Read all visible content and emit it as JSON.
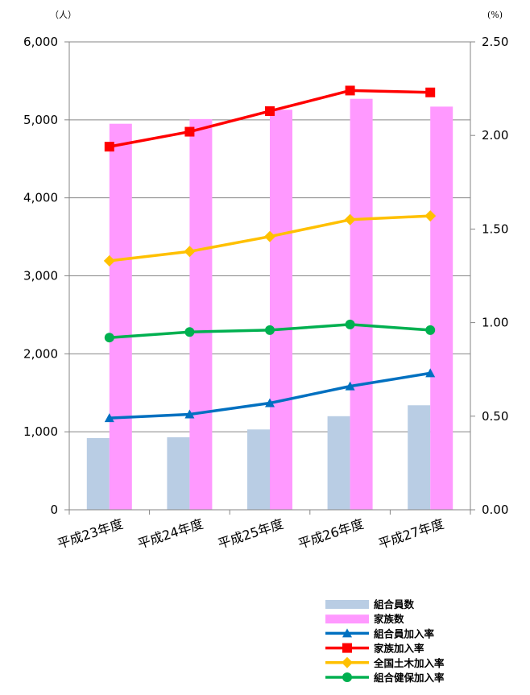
{
  "chart_data": {
    "type": "bar+line",
    "categories": [
      "平成23年度",
      "平成24年度",
      "平成25年度",
      "平成26年度",
      "平成27年度"
    ],
    "left_axis": {
      "unit": "（人）",
      "ylim": [
        0,
        6000
      ],
      "ticks": [
        "0",
        "1,000",
        "2,000",
        "3,000",
        "4,000",
        "5,000",
        "6,000"
      ],
      "tick_values": [
        0,
        1000,
        2000,
        3000,
        4000,
        5000,
        6000
      ]
    },
    "right_axis": {
      "unit": "(%)",
      "ylim": [
        0,
        2.5
      ],
      "ticks": [
        "0.00",
        "0.50",
        "1.00",
        "1.50",
        "2.00",
        "2.50"
      ],
      "tick_values": [
        0,
        0.5,
        1.0,
        1.5,
        2.0,
        2.5
      ]
    },
    "grid": true,
    "legend_position": "bottom-right",
    "bar_series": [
      {
        "name": "組合員数",
        "color": "#b9cde4",
        "values": [
          920,
          930,
          1030,
          1200,
          1340
        ]
      },
      {
        "name": "家族数",
        "color": "#ff99ff",
        "values": [
          4950,
          5010,
          5130,
          5270,
          5170
        ]
      }
    ],
    "line_series": [
      {
        "name": "組合員加入率",
        "color": "#0070c0",
        "marker": "triangle",
        "values": [
          0.49,
          0.51,
          0.57,
          0.66,
          0.73
        ]
      },
      {
        "name": "家族加入率",
        "color": "#ff0000",
        "marker": "square",
        "values": [
          1.94,
          2.02,
          2.13,
          2.24,
          2.23
        ]
      },
      {
        "name": "全国土木加入率",
        "color": "#ffc000",
        "marker": "diamond",
        "values": [
          1.33,
          1.38,
          1.46,
          1.55,
          1.57
        ]
      },
      {
        "name": "組合健保加入率",
        "color": "#00b050",
        "marker": "circle",
        "values": [
          0.92,
          0.95,
          0.96,
          0.99,
          0.96
        ]
      }
    ]
  }
}
